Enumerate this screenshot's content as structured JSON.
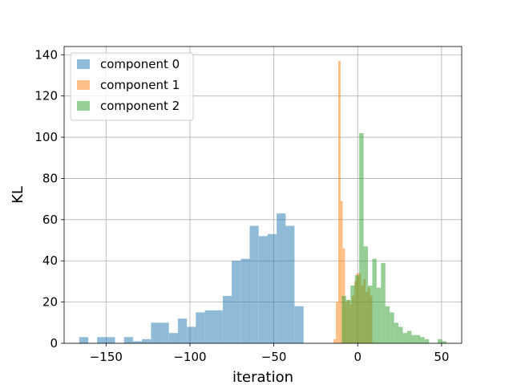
{
  "chart_data": {
    "type": "bar",
    "subtype": "overlapping-histogram",
    "title": "",
    "xlabel": "iteration",
    "ylabel": "KL",
    "xlim": [
      -175,
      62
    ],
    "ylim": [
      0,
      144
    ],
    "xticks": [
      -150,
      -100,
      -50,
      0,
      50
    ],
    "xtick_labels": [
      "−150",
      "−100",
      "−50",
      "0",
      "50"
    ],
    "yticks": [
      0,
      20,
      40,
      60,
      80,
      100,
      120,
      140
    ],
    "ytick_labels": [
      "0",
      "20",
      "40",
      "60",
      "80",
      "100",
      "120",
      "140"
    ],
    "grid": true,
    "legend_position": "top-left",
    "bar_alpha": 0.5,
    "series": [
      {
        "name": "component 0",
        "color": "#1f77b4",
        "bin_width": 5.35,
        "bins": [
          [
            -166.0,
            3
          ],
          [
            -160.6,
            0
          ],
          [
            -155.3,
            3
          ],
          [
            -150.0,
            3
          ],
          [
            -144.6,
            0
          ],
          [
            -139.3,
            3
          ],
          [
            -133.9,
            1
          ],
          [
            -128.6,
            2
          ],
          [
            -123.2,
            10
          ],
          [
            -117.9,
            10
          ],
          [
            -112.5,
            5
          ],
          [
            -107.2,
            12
          ],
          [
            -101.8,
            8
          ],
          [
            -96.5,
            15
          ],
          [
            -91.1,
            16
          ],
          [
            -85.8,
            16
          ],
          [
            -80.4,
            23
          ],
          [
            -75.1,
            40
          ],
          [
            -69.7,
            41
          ],
          [
            -64.4,
            57
          ],
          [
            -59.0,
            52
          ],
          [
            -53.7,
            53
          ],
          [
            -48.3,
            63
          ],
          [
            -43.0,
            57
          ],
          [
            -37.6,
            18
          ]
        ]
      },
      {
        "name": "component 1",
        "color": "#ff7f0e",
        "bin_width": 1.37,
        "bins": [
          [
            -14.4,
            2
          ],
          [
            -13.0,
            20
          ],
          [
            -11.6,
            137
          ],
          [
            -10.3,
            69
          ],
          [
            -8.9,
            46
          ],
          [
            -7.6,
            20
          ],
          [
            -6.2,
            21
          ],
          [
            -4.8,
            19
          ],
          [
            -3.5,
            23
          ],
          [
            -2.1,
            30
          ],
          [
            -0.8,
            34
          ],
          [
            0.6,
            34
          ],
          [
            2.0,
            28
          ],
          [
            3.3,
            31
          ],
          [
            4.7,
            25
          ],
          [
            6.1,
            27
          ],
          [
            7.4,
            23
          ]
        ]
      },
      {
        "name": "component 2",
        "color": "#2ca02c",
        "bin_width": 2.6,
        "bins": [
          [
            -9.5,
            23
          ],
          [
            -6.9,
            21
          ],
          [
            -4.3,
            28
          ],
          [
            -1.7,
            33
          ],
          [
            0.9,
            102
          ],
          [
            3.5,
            47
          ],
          [
            6.1,
            28
          ],
          [
            8.7,
            41
          ],
          [
            11.3,
            27
          ],
          [
            13.9,
            39
          ],
          [
            16.5,
            18
          ],
          [
            19.1,
            15
          ],
          [
            21.7,
            10
          ],
          [
            24.3,
            8
          ],
          [
            26.9,
            5
          ],
          [
            29.5,
            6
          ],
          [
            32.1,
            4
          ],
          [
            34.7,
            4
          ],
          [
            37.3,
            3
          ],
          [
            39.9,
            2
          ],
          [
            42.5,
            0
          ],
          [
            45.1,
            0
          ],
          [
            47.7,
            2
          ],
          [
            50.3,
            1
          ]
        ]
      }
    ]
  }
}
